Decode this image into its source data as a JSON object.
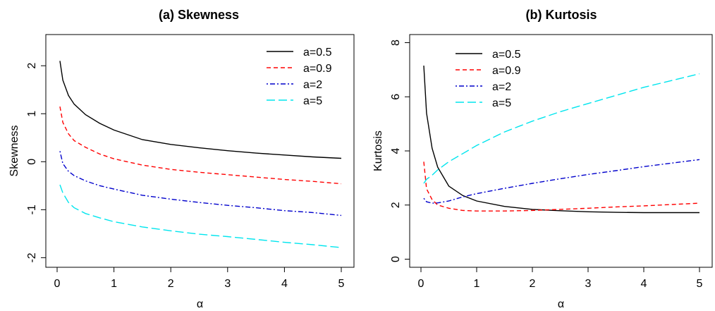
{
  "chart_data": [
    {
      "type": "line",
      "title": "(a) Skewness",
      "xlabel": "α",
      "ylabel": "Skewness",
      "xlim": [
        0,
        5
      ],
      "ylim": [
        -2.2,
        2.65
      ],
      "xticks": [
        0,
        1,
        2,
        3,
        4,
        5
      ],
      "xtick_labels": [
        "0",
        "1",
        "2",
        "3",
        "4",
        "5"
      ],
      "yticks": [
        -2,
        -1,
        0,
        1,
        2
      ],
      "ytick_labels": [
        "-2",
        "-1",
        "0",
        "1",
        "2"
      ],
      "grid": false,
      "legend_position": "top-right",
      "x": [
        0.05,
        0.1,
        0.2,
        0.3,
        0.5,
        0.75,
        1,
        1.5,
        2,
        2.5,
        3,
        3.5,
        4,
        4.5,
        5
      ],
      "series": [
        {
          "name": "a=0.5",
          "color": "#000000",
          "dash": "solid",
          "values": [
            2.1,
            1.7,
            1.38,
            1.2,
            0.98,
            0.8,
            0.66,
            0.46,
            0.36,
            0.29,
            0.23,
            0.18,
            0.14,
            0.1,
            0.07
          ]
        },
        {
          "name": "a=0.9",
          "color": "#ff0000",
          "dash": "dashed",
          "values": [
            1.15,
            0.82,
            0.58,
            0.44,
            0.3,
            0.16,
            0.06,
            -0.07,
            -0.16,
            -0.22,
            -0.27,
            -0.32,
            -0.37,
            -0.41,
            -0.46
          ]
        },
        {
          "name": "a=2",
          "color": "#0000cc",
          "dash": "dotdash",
          "values": [
            0.22,
            -0.04,
            -0.2,
            -0.29,
            -0.4,
            -0.5,
            -0.57,
            -0.7,
            -0.78,
            -0.85,
            -0.91,
            -0.96,
            -1.02,
            -1.06,
            -1.12
          ]
        },
        {
          "name": "a=5",
          "color": "#00e5ee",
          "dash": "longdash",
          "values": [
            -0.48,
            -0.65,
            -0.85,
            -0.96,
            -1.08,
            -1.17,
            -1.25,
            -1.36,
            -1.44,
            -1.51,
            -1.56,
            -1.62,
            -1.68,
            -1.73,
            -1.79
          ]
        }
      ]
    },
    {
      "type": "line",
      "title": "(b) Kurtosis",
      "xlabel": "α",
      "ylabel": "Kurtosis",
      "xlim": [
        0,
        5
      ],
      "ylim": [
        -0.3,
        8.3
      ],
      "xticks": [
        0,
        1,
        2,
        3,
        4,
        5
      ],
      "xtick_labels": [
        "0",
        "1",
        "2",
        "3",
        "4",
        "5"
      ],
      "yticks": [
        0,
        2,
        4,
        6,
        8
      ],
      "ytick_labels": [
        "0",
        "2",
        "4",
        "6",
        "8"
      ],
      "grid": false,
      "legend_position": "top-left",
      "x": [
        0.05,
        0.1,
        0.2,
        0.3,
        0.5,
        0.75,
        1,
        1.5,
        2,
        2.5,
        3,
        3.5,
        4,
        4.5,
        5
      ],
      "series": [
        {
          "name": "a=0.5",
          "color": "#000000",
          "dash": "solid",
          "values": [
            7.15,
            5.4,
            4.1,
            3.4,
            2.7,
            2.35,
            2.15,
            1.95,
            1.84,
            1.79,
            1.75,
            1.73,
            1.72,
            1.72,
            1.72
          ]
        },
        {
          "name": "a=0.9",
          "color": "#ff0000",
          "dash": "dashed",
          "values": [
            3.6,
            2.6,
            2.2,
            2.0,
            1.88,
            1.8,
            1.78,
            1.78,
            1.8,
            1.84,
            1.88,
            1.93,
            1.97,
            2.02,
            2.07
          ]
        },
        {
          "name": "a=2",
          "color": "#0000cc",
          "dash": "dotdash",
          "values": [
            2.25,
            2.12,
            2.07,
            2.08,
            2.15,
            2.3,
            2.42,
            2.62,
            2.8,
            2.97,
            3.13,
            3.27,
            3.42,
            3.55,
            3.68
          ]
        },
        {
          "name": "a=5",
          "color": "#00e5ee",
          "dash": "longdash",
          "values": [
            2.8,
            2.95,
            3.1,
            3.3,
            3.6,
            3.9,
            4.2,
            4.7,
            5.1,
            5.45,
            5.75,
            6.05,
            6.35,
            6.6,
            6.85
          ]
        }
      ]
    }
  ]
}
